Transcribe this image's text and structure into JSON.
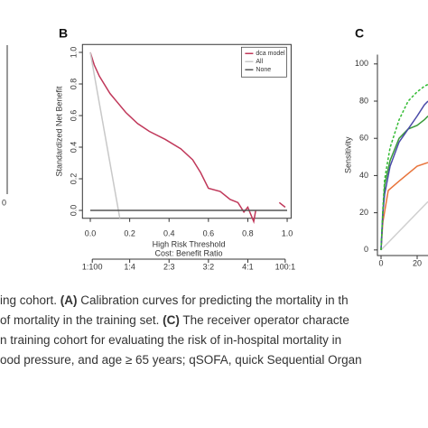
{
  "panel_a_fragment": {
    "tick_label": "0"
  },
  "chart_data": [
    {
      "type": "line",
      "panel": "B",
      "xlabel": "High Risk Threshold",
      "ylabel": "Standardized Net Benefit",
      "xlim": [
        -0.04,
        1.02
      ],
      "ylim": [
        -0.05,
        1.05
      ],
      "xticks": [
        {
          "value": 0,
          "label": "0.0"
        },
        0.2,
        0.4,
        0.6,
        0.8,
        {
          "value": 1,
          "label": "1.0"
        }
      ],
      "yticks": [
        {
          "value": 0,
          "label": "0.0"
        },
        0.2,
        0.4,
        0.6,
        0.8,
        {
          "value": 1,
          "label": "1.0"
        }
      ],
      "x2label": "Cost: Benefit Ratio",
      "x2ticks": [
        {
          "value": 0.01,
          "label": "1:100"
        },
        {
          "value": 0.2,
          "label": "1:4"
        },
        {
          "value": 0.4,
          "label": "2:3"
        },
        {
          "value": 0.6,
          "label": "3:2"
        },
        {
          "value": 0.8,
          "label": "4:1"
        },
        {
          "value": 0.99,
          "label": "100:1"
        }
      ],
      "legend": "top-right",
      "series": [
        {
          "name": "dca model",
          "color": "#c0385a",
          "x": [
            0,
            0.02,
            0.046,
            0.1,
            0.18,
            0.24,
            0.3,
            0.38,
            0.46,
            0.52,
            0.56,
            0.6,
            0.66,
            0.71,
            0.75,
            0.78,
            0.8,
            0.83,
            0.84,
            null,
            0.96,
            0.99
          ],
          "values": [
            1.0,
            0.92,
            0.85,
            0.74,
            0.62,
            0.55,
            0.5,
            0.45,
            0.39,
            0.32,
            0.24,
            0.14,
            0.12,
            0.07,
            0.05,
            -0.01,
            0.02,
            -0.07,
            0.0,
            null,
            0.05,
            0.02
          ]
        },
        {
          "name": "All",
          "color": "#c8c8c8",
          "x": [
            0,
            0.15
          ],
          "values": [
            1.0,
            -0.05
          ]
        },
        {
          "name": "None",
          "color": "#555555",
          "x": [
            0,
            1
          ],
          "values": [
            0,
            0
          ]
        }
      ]
    },
    {
      "type": "line",
      "panel": "C",
      "ylabel": "Sensitivity",
      "xlim": [
        -2,
        26
      ],
      "ylim": [
        -3,
        105
      ],
      "xticks": [
        0,
        20
      ],
      "yticks": [
        0,
        20,
        40,
        60,
        80,
        100
      ],
      "series": [
        {
          "color": "#d0d0d0",
          "x": [
            0,
            26
          ],
          "values": [
            0,
            26
          ]
        },
        {
          "color": "#e8743b",
          "x": [
            0,
            1,
            4,
            10,
            20,
            26
          ],
          "values": [
            0,
            15,
            32,
            37,
            45,
            47
          ]
        },
        {
          "color": "#3a9a3a",
          "x": [
            0,
            1,
            2,
            5,
            10,
            15,
            20,
            24,
            26
          ],
          "values": [
            0,
            20,
            35,
            48,
            60,
            65,
            67,
            70,
            72
          ]
        },
        {
          "color": "#4a4aa8",
          "x": [
            0,
            1,
            2,
            5,
            10,
            15,
            20,
            24,
            26
          ],
          "values": [
            0,
            20,
            30,
            45,
            58,
            65,
            72,
            78,
            80
          ]
        },
        {
          "color": "#33bb33",
          "dashed": true,
          "x": [
            0,
            1,
            2,
            5,
            10,
            15,
            20,
            24,
            26
          ],
          "values": [
            0,
            22,
            38,
            55,
            70,
            80,
            85,
            88,
            89
          ]
        }
      ]
    }
  ],
  "caption": {
    "lines": [
      [
        {
          "text": "ing cohort. ",
          "bold": false
        },
        {
          "text": "(A)",
          "bold": true
        },
        {
          "text": " Calibration curves for predicting the mortality in th",
          "bold": false
        }
      ],
      [
        {
          "text": " of mortality in the training set. ",
          "bold": false
        },
        {
          "text": "(C)",
          "bold": true
        },
        {
          "text": " The receiver operator characte",
          "bold": false
        }
      ],
      [
        {
          "text": "n training cohort for evaluating the risk of in-hospital mortality in",
          "bold": false
        }
      ],
      [
        {
          "text": "ood pressure, and age ≥ 65 years; qSOFA, quick Sequential Organ",
          "bold": false
        }
      ]
    ]
  }
}
